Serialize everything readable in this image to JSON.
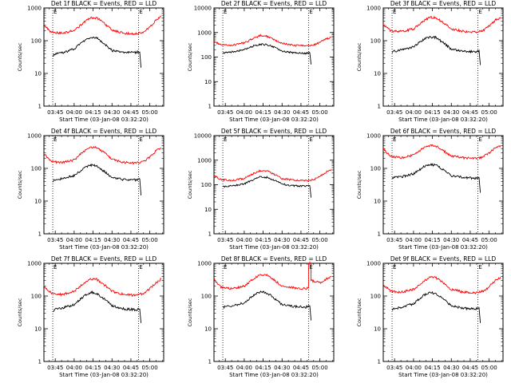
{
  "colors": {
    "background": "#ffffff",
    "axes": "#000000",
    "events": "#000000",
    "lld": "#ff0000"
  },
  "chart_data": [
    {
      "type": "line",
      "title": "Det 1f BLACK = Events, RED = LLD",
      "xlabel": "Start Time (03-Jan-08 03:32:20)",
      "ylabel": "Counts/sec",
      "yscale": "log",
      "ylim": [
        1,
        1000
      ],
      "xlim": [
        "03:36",
        "05:11"
      ],
      "xticks": [
        "03:45",
        "04:00",
        "04:15",
        "04:30",
        "04:45",
        "05:00"
      ],
      "yticks": [
        "1",
        "10",
        "100",
        "1000"
      ],
      "markers": [
        {
          "time": "03:43",
          "label": "E"
        },
        {
          "time": "04:51",
          "label": "E"
        }
      ],
      "series": [
        {
          "key": "lld",
          "color": "#ff0000",
          "x": [
            "03:36",
            "03:42",
            "03:50",
            "04:00",
            "04:08",
            "04:13",
            "04:18",
            "04:24",
            "04:30",
            "04:40",
            "04:49",
            "04:55",
            "05:00",
            "05:05",
            "05:09"
          ],
          "y": [
            300,
            180,
            170,
            200,
            380,
            510,
            490,
            340,
            210,
            170,
            165,
            180,
            260,
            420,
            560
          ]
        },
        {
          "key": "events",
          "color": "#000000",
          "x": [
            "03:43",
            "03:45",
            "03:50",
            "04:00",
            "04:08",
            "04:13",
            "04:18",
            "04:24",
            "04:30",
            "04:40",
            "04:49",
            "04:52",
            "04:53"
          ],
          "y": [
            35,
            40,
            42,
            55,
            100,
            125,
            120,
            80,
            50,
            44,
            44,
            45,
            15
          ]
        }
      ]
    },
    {
      "type": "line",
      "title": "Det 2f BLACK = Events, RED = LLD",
      "xlabel": "Start Time (03-Jan-08 03:32:20)",
      "ylabel": "Counts/sec",
      "yscale": "log",
      "ylim": [
        1,
        10000
      ],
      "xlim": [
        "03:36",
        "05:11"
      ],
      "xticks": [
        "03:45",
        "04:00",
        "04:15",
        "04:30",
        "04:45",
        "05:00"
      ],
      "yticks": [
        "1",
        "10",
        "100",
        "1000",
        "10000"
      ],
      "markers": [
        {
          "time": "03:43",
          "label": "E"
        },
        {
          "time": "04:51",
          "label": "E"
        }
      ],
      "series": [
        {
          "key": "lld",
          "color": "#ff0000",
          "x": [
            "03:36",
            "03:42",
            "03:50",
            "04:00",
            "04:08",
            "04:13",
            "04:18",
            "04:24",
            "04:30",
            "04:40",
            "04:49",
            "04:55",
            "05:00",
            "05:05",
            "05:09"
          ],
          "y": [
            420,
            320,
            300,
            380,
            600,
            760,
            700,
            500,
            360,
            300,
            290,
            310,
            400,
            550,
            650
          ]
        },
        {
          "key": "events",
          "color": "#000000",
          "x": [
            "03:43",
            "03:45",
            "03:50",
            "04:00",
            "04:08",
            "04:13",
            "04:18",
            "04:24",
            "04:30",
            "04:40",
            "04:49",
            "04:52",
            "04:53"
          ],
          "y": [
            140,
            150,
            160,
            200,
            290,
            330,
            320,
            250,
            170,
            150,
            140,
            150,
            50
          ]
        }
      ]
    },
    {
      "type": "line",
      "title": "Det 3f BLACK = Events, RED = LLD",
      "xlabel": "Start Time (03-Jan-08 03:32:20)",
      "ylabel": "Counts/sec",
      "yscale": "log",
      "ylim": [
        1,
        1000
      ],
      "xlim": [
        "03:36",
        "05:11"
      ],
      "xticks": [
        "03:45",
        "04:00",
        "04:15",
        "04:30",
        "04:45",
        "05:00"
      ],
      "yticks": [
        "1",
        "10",
        "100",
        "1000"
      ],
      "markers": [
        {
          "time": "03:43",
          "label": "E"
        },
        {
          "time": "04:51",
          "label": "E"
        }
      ],
      "series": [
        {
          "key": "lld",
          "color": "#ff0000",
          "x": [
            "03:36",
            "03:42",
            "03:50",
            "04:00",
            "04:08",
            "04:13",
            "04:18",
            "04:24",
            "04:30",
            "04:40",
            "04:49",
            "04:55",
            "05:00",
            "05:05",
            "05:09"
          ],
          "y": [
            300,
            200,
            190,
            230,
            400,
            520,
            500,
            350,
            230,
            190,
            185,
            200,
            280,
            420,
            520
          ]
        },
        {
          "key": "events",
          "color": "#000000",
          "x": [
            "03:43",
            "03:45",
            "03:50",
            "04:00",
            "04:08",
            "04:13",
            "04:18",
            "04:24",
            "04:30",
            "04:40",
            "04:49",
            "04:52",
            "04:53"
          ],
          "y": [
            45,
            48,
            52,
            65,
            110,
            130,
            125,
            85,
            55,
            48,
            46,
            50,
            18
          ]
        }
      ]
    },
    {
      "type": "line",
      "title": "Det 4f BLACK = Events, RED = LLD",
      "xlabel": "Start Time (03-Jan-08 03:32:20)",
      "ylabel": "Counts/sec",
      "yscale": "log",
      "ylim": [
        1,
        1000
      ],
      "xlim": [
        "03:36",
        "05:11"
      ],
      "xticks": [
        "03:45",
        "04:00",
        "04:15",
        "04:30",
        "04:45",
        "05:00"
      ],
      "yticks": [
        "1",
        "10",
        "100",
        "1000"
      ],
      "markers": [
        {
          "time": "03:43",
          "label": "E"
        },
        {
          "time": "04:51",
          "label": "E"
        }
      ],
      "series": [
        {
          "key": "lld",
          "color": "#ff0000",
          "x": [
            "03:36",
            "03:42",
            "03:50",
            "04:00",
            "04:08",
            "04:13",
            "04:18",
            "04:24",
            "04:30",
            "04:40",
            "04:49",
            "04:55",
            "05:00",
            "05:05",
            "05:09"
          ],
          "y": [
            280,
            160,
            150,
            180,
            340,
            450,
            430,
            300,
            190,
            150,
            145,
            160,
            220,
            340,
            420
          ]
        },
        {
          "key": "events",
          "color": "#000000",
          "x": [
            "03:43",
            "03:45",
            "03:50",
            "04:00",
            "04:08",
            "04:13",
            "04:18",
            "04:24",
            "04:30",
            "04:40",
            "04:49",
            "04:52",
            "04:53"
          ],
          "y": [
            40,
            45,
            48,
            60,
            105,
            125,
            118,
            80,
            52,
            45,
            44,
            48,
            15
          ]
        }
      ]
    },
    {
      "type": "line",
      "title": "Det 5f BLACK = Events, RED = LLD",
      "xlabel": "Start Time (03-Jan-08 03:32:20)",
      "ylabel": "Counts/sec",
      "yscale": "log",
      "ylim": [
        1,
        10000
      ],
      "xlim": [
        "03:36",
        "05:11"
      ],
      "xticks": [
        "03:45",
        "04:00",
        "04:15",
        "04:30",
        "04:45",
        "05:00"
      ],
      "yticks": [
        "1",
        "10",
        "100",
        "1000",
        "10000"
      ],
      "markers": [
        {
          "time": "03:43",
          "label": "E"
        },
        {
          "time": "04:51",
          "label": "E"
        }
      ],
      "series": [
        {
          "key": "lld",
          "color": "#ff0000",
          "x": [
            "03:36",
            "03:42",
            "03:50",
            "04:00",
            "04:08",
            "04:13",
            "04:18",
            "04:24",
            "04:30",
            "04:40",
            "04:49",
            "04:55",
            "05:00",
            "05:05",
            "05:09"
          ],
          "y": [
            230,
            160,
            150,
            180,
            300,
            380,
            360,
            260,
            180,
            150,
            145,
            160,
            220,
            330,
            420
          ]
        },
        {
          "key": "events",
          "color": "#000000",
          "x": [
            "03:43",
            "03:45",
            "03:50",
            "04:00",
            "04:08",
            "04:13",
            "04:18",
            "04:24",
            "04:30",
            "04:40",
            "04:49",
            "04:52",
            "04:53"
          ],
          "y": [
            80,
            85,
            90,
            110,
            170,
            210,
            200,
            150,
            105,
            90,
            88,
            92,
            30
          ]
        }
      ]
    },
    {
      "type": "line",
      "title": "Det 6f BLACK = Events, RED = LLD",
      "xlabel": "Start Time (03-Jan-08 03:32:20)",
      "ylabel": "Counts/sec",
      "yscale": "log",
      "ylim": [
        1,
        1000
      ],
      "xlim": [
        "03:36",
        "05:11"
      ],
      "xticks": [
        "03:45",
        "04:00",
        "04:15",
        "04:30",
        "04:45",
        "05:00"
      ],
      "yticks": [
        "1",
        "10",
        "100",
        "1000"
      ],
      "markers": [
        {
          "time": "03:43",
          "label": "E"
        },
        {
          "time": "04:51",
          "label": "E"
        }
      ],
      "series": [
        {
          "key": "lld",
          "color": "#ff0000",
          "x": [
            "03:36",
            "03:42",
            "03:50",
            "04:00",
            "04:08",
            "04:13",
            "04:18",
            "04:24",
            "04:30",
            "04:40",
            "04:49",
            "04:55",
            "05:00",
            "05:05",
            "05:09"
          ],
          "y": [
            400,
            230,
            210,
            250,
            420,
            500,
            480,
            340,
            240,
            210,
            200,
            220,
            300,
            420,
            500
          ]
        },
        {
          "key": "events",
          "color": "#000000",
          "x": [
            "03:43",
            "03:45",
            "03:50",
            "04:00",
            "04:08",
            "04:13",
            "04:18",
            "04:24",
            "04:30",
            "04:40",
            "04:49",
            "04:52",
            "04:53"
          ],
          "y": [
            50,
            52,
            55,
            68,
            110,
            130,
            125,
            88,
            60,
            52,
            50,
            52,
            18
          ]
        }
      ]
    },
    {
      "type": "line",
      "title": "Det 7f BLACK = Events, RED = LLD",
      "xlabel": "Start Time (03-Jan-08 03:32:20)",
      "ylabel": "Counts/sec",
      "yscale": "log",
      "ylim": [
        1,
        1000
      ],
      "xlim": [
        "03:36",
        "05:11"
      ],
      "xticks": [
        "03:45",
        "04:00",
        "04:15",
        "04:30",
        "04:45",
        "05:00"
      ],
      "yticks": [
        "1",
        "10",
        "100",
        "1000"
      ],
      "markers": [
        {
          "time": "03:43",
          "label": "E"
        },
        {
          "time": "04:51",
          "label": "E"
        }
      ],
      "series": [
        {
          "key": "lld",
          "color": "#ff0000",
          "x": [
            "03:36",
            "03:42",
            "03:50",
            "04:00",
            "04:08",
            "04:13",
            "04:18",
            "04:24",
            "04:30",
            "04:40",
            "04:49",
            "04:55",
            "05:00",
            "05:05",
            "05:09"
          ],
          "y": [
            200,
            120,
            110,
            140,
            250,
            340,
            320,
            220,
            140,
            110,
            105,
            120,
            170,
            260,
            330
          ]
        },
        {
          "key": "events",
          "color": "#000000",
          "x": [
            "03:43",
            "03:45",
            "03:50",
            "04:00",
            "04:08",
            "04:13",
            "04:18",
            "04:24",
            "04:30",
            "04:40",
            "04:49",
            "04:52",
            "04:53"
          ],
          "y": [
            35,
            40,
            42,
            55,
            100,
            130,
            120,
            80,
            50,
            40,
            38,
            40,
            15
          ]
        }
      ]
    },
    {
      "type": "line",
      "title": "Det 8f BLACK = Events, RED = LLD",
      "xlabel": "Start Time (03-Jan-08 03:32:20)",
      "ylabel": "Counts/sec",
      "yscale": "log",
      "ylim": [
        1,
        1000
      ],
      "xlim": [
        "03:36",
        "05:11"
      ],
      "xticks": [
        "03:45",
        "04:00",
        "04:15",
        "04:30",
        "04:45",
        "05:00"
      ],
      "yticks": [
        "1",
        "10",
        "100",
        "1000"
      ],
      "markers": [
        {
          "time": "03:43",
          "label": "E"
        },
        {
          "time": "04:51",
          "label": "E"
        }
      ],
      "series": [
        {
          "key": "lld",
          "color": "#ff0000",
          "x": [
            "03:36",
            "03:42",
            "03:50",
            "04:00",
            "04:08",
            "04:13",
            "04:18",
            "04:24",
            "04:30",
            "04:40",
            "04:49",
            "04:51",
            "04:51",
            "04:53",
            "04:53",
            "05:00",
            "05:05",
            "05:09"
          ],
          "y": [
            330,
            180,
            170,
            200,
            350,
            450,
            430,
            300,
            200,
            175,
            170,
            180,
            1000,
            1000,
            300,
            260,
            330,
            400
          ]
        },
        {
          "key": "events",
          "color": "#000000",
          "x": [
            "03:43",
            "03:45",
            "03:50",
            "04:00",
            "04:08",
            "04:13",
            "04:18",
            "04:24",
            "04:30",
            "04:40",
            "04:49",
            "04:52",
            "04:53"
          ],
          "y": [
            45,
            48,
            50,
            62,
            110,
            135,
            125,
            85,
            55,
            48,
            46,
            50,
            18
          ]
        }
      ]
    },
    {
      "type": "line",
      "title": "Det 9f BLACK = Events, RED = LLD",
      "xlabel": "Start Time (03-Jan-08 03:32:20)",
      "ylabel": "Counts/sec",
      "yscale": "log",
      "ylim": [
        1,
        1000
      ],
      "xlim": [
        "03:36",
        "05:11"
      ],
      "xticks": [
        "03:45",
        "04:00",
        "04:15",
        "04:30",
        "04:45",
        "05:00"
      ],
      "yticks": [
        "1",
        "10",
        "100",
        "1000"
      ],
      "markers": [
        {
          "time": "03:43",
          "label": "E"
        },
        {
          "time": "04:51",
          "label": "E"
        }
      ],
      "series": [
        {
          "key": "lld",
          "color": "#ff0000",
          "x": [
            "03:36",
            "03:42",
            "03:50",
            "04:00",
            "04:08",
            "04:13",
            "04:18",
            "04:24",
            "04:30",
            "04:40",
            "04:49",
            "04:55",
            "05:00",
            "05:05",
            "05:09"
          ],
          "y": [
            220,
            140,
            130,
            160,
            280,
            380,
            360,
            250,
            160,
            130,
            125,
            140,
            190,
            300,
            380
          ]
        },
        {
          "key": "events",
          "color": "#000000",
          "x": [
            "03:43",
            "03:45",
            "03:50",
            "04:00",
            "04:08",
            "04:13",
            "04:18",
            "04:24",
            "04:30",
            "04:40",
            "04:49",
            "04:52",
            "04:53"
          ],
          "y": [
            38,
            42,
            45,
            58,
            105,
            128,
            120,
            80,
            50,
            42,
            40,
            44,
            15
          ]
        }
      ]
    }
  ]
}
